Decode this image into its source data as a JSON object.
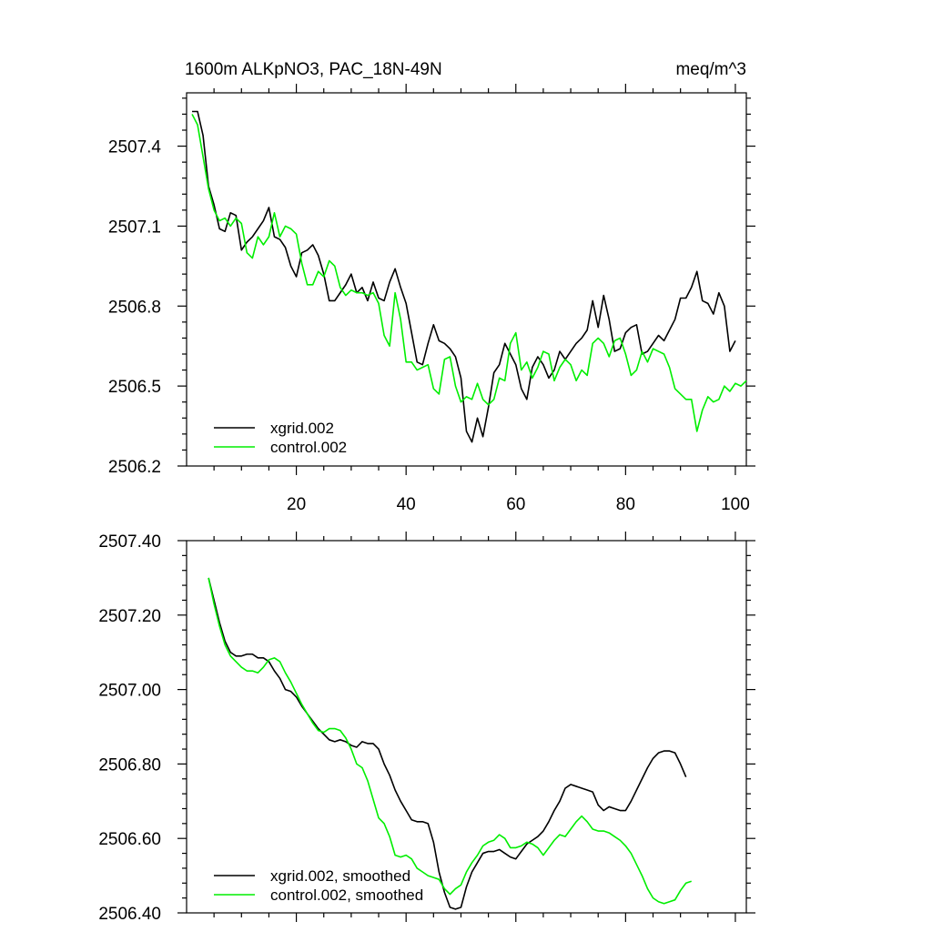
{
  "header": {
    "title_left": "1600m ALKpNO3, PAC_18N-49N",
    "title_right": "meq/m^3"
  },
  "colors": {
    "xgrid": "#000000",
    "control": "#00ee00"
  },
  "chart_data": [
    {
      "type": "line",
      "xlim": [
        0,
        102
      ],
      "ylim": [
        2506.2,
        2507.6
      ],
      "x_ticks": [
        20,
        40,
        60,
        80,
        100
      ],
      "y_ticks": [
        2506.2,
        2506.5,
        2506.8,
        2507.1,
        2507.4
      ],
      "y_tick_labels": [
        "2506.2",
        "2506.5",
        "2506.8",
        "2507.1",
        "2507.4"
      ],
      "legend_position": "bottom-left",
      "series": [
        {
          "name": "xgrid.002",
          "color": "#000000",
          "x_start": 1,
          "values": [
            2507.53,
            2507.53,
            2507.44,
            2507.25,
            2507.18,
            2507.09,
            2507.08,
            2507.15,
            2507.14,
            2507.01,
            2507.04,
            2507.06,
            2507.09,
            2507.12,
            2507.17,
            2507.06,
            2507.05,
            2507.02,
            2506.95,
            2506.91,
            2507.0,
            2507.01,
            2507.03,
            2506.99,
            2506.92,
            2506.82,
            2506.82,
            2506.85,
            2506.88,
            2506.92,
            2506.85,
            2506.87,
            2506.82,
            2506.89,
            2506.83,
            2506.82,
            2506.89,
            2506.94,
            2506.87,
            2506.81,
            2506.7,
            2506.59,
            2506.58,
            2506.66,
            2506.73,
            2506.67,
            2506.66,
            2506.64,
            2506.61,
            2506.53,
            2506.33,
            2506.29,
            2506.38,
            2506.31,
            2506.42,
            2506.55,
            2506.58,
            2506.66,
            2506.62,
            2506.58,
            2506.49,
            2506.45,
            2506.57,
            2506.61,
            2506.58,
            2506.53,
            2506.56,
            2506.63,
            2506.6,
            2506.63,
            2506.66,
            2506.68,
            2506.71,
            2506.82,
            2506.72,
            2506.84,
            2506.75,
            2506.63,
            2506.64,
            2506.7,
            2506.72,
            2506.73,
            2506.62,
            2506.63,
            2506.66,
            2506.69,
            2506.67,
            2506.71,
            2506.75,
            2506.83,
            2506.83,
            2506.87,
            2506.93,
            2506.82,
            2506.81,
            2506.77,
            2506.85,
            2506.8,
            2506.63,
            2506.67
          ]
        },
        {
          "name": "control.002",
          "color": "#00ee00",
          "x_start": 1,
          "values": [
            2507.52,
            2507.48,
            2507.36,
            2507.24,
            2507.16,
            2507.12,
            2507.13,
            2507.1,
            2507.13,
            2507.11,
            2507.0,
            2506.98,
            2507.06,
            2507.03,
            2507.06,
            2507.15,
            2507.06,
            2507.1,
            2507.09,
            2507.07,
            2506.96,
            2506.88,
            2506.88,
            2506.93,
            2506.91,
            2506.97,
            2506.95,
            2506.87,
            2506.84,
            2506.86,
            2506.85,
            2506.85,
            2506.84,
            2506.85,
            2506.81,
            2506.69,
            2506.65,
            2506.85,
            2506.75,
            2506.59,
            2506.59,
            2506.56,
            2506.57,
            2506.58,
            2506.49,
            2506.47,
            2506.6,
            2506.61,
            2506.5,
            2506.44,
            2506.46,
            2506.45,
            2506.51,
            2506.45,
            2506.43,
            2506.45,
            2506.53,
            2506.52,
            2506.66,
            2506.7,
            2506.56,
            2506.59,
            2506.53,
            2506.57,
            2506.63,
            2506.62,
            2506.52,
            2506.57,
            2506.6,
            2506.58,
            2506.52,
            2506.56,
            2506.54,
            2506.66,
            2506.68,
            2506.66,
            2506.61,
            2506.67,
            2506.68,
            2506.62,
            2506.54,
            2506.56,
            2506.63,
            2506.59,
            2506.64,
            2506.63,
            2506.62,
            2506.57,
            2506.49,
            2506.47,
            2506.45,
            2506.45,
            2506.33,
            2506.41,
            2506.46,
            2506.44,
            2506.45,
            2506.5,
            2506.48,
            2506.51,
            2506.5,
            2506.52
          ]
        }
      ]
    },
    {
      "type": "line",
      "xlim": [
        0,
        102
      ],
      "ylim": [
        2506.4,
        2507.4
      ],
      "x_ticks": [
        20,
        40,
        60,
        80,
        100
      ],
      "y_ticks": [
        2506.4,
        2506.6,
        2506.8,
        2507.0,
        2507.2,
        2507.4
      ],
      "y_tick_labels": [
        "2506.40",
        "2506.60",
        "2506.80",
        "2507.00",
        "2507.20",
        "2507.40"
      ],
      "legend_position": "bottom-left",
      "series": [
        {
          "name": "xgrid.002, smoothed",
          "color": "#000000",
          "x_start": 4,
          "values": [
            2507.3,
            2507.24,
            2507.18,
            2507.13,
            2507.1,
            2507.09,
            2507.09,
            2507.095,
            2507.095,
            2507.085,
            2507.085,
            2507.075,
            2507.05,
            2507.03,
            2507.0,
            2506.995,
            2506.98,
            2506.955,
            2506.935,
            2506.915,
            2506.895,
            2506.88,
            2506.865,
            2506.86,
            2506.865,
            2506.86,
            2506.85,
            2506.845,
            2506.86,
            2506.855,
            2506.855,
            2506.84,
            2506.8,
            2506.77,
            2506.73,
            2506.7,
            2506.675,
            2506.65,
            2506.645,
            2506.645,
            2506.64,
            2506.59,
            2506.51,
            2506.455,
            2506.415,
            2506.41,
            2506.415,
            2506.47,
            2506.51,
            2506.535,
            2506.56,
            2506.565,
            2506.565,
            2506.57,
            2506.56,
            2506.55,
            2506.545,
            2506.565,
            2506.585,
            2506.595,
            2506.605,
            2506.62,
            2506.645,
            2506.675,
            2506.7,
            2506.735,
            2506.745,
            2506.74,
            2506.735,
            2506.73,
            2506.725,
            2506.69,
            2506.675,
            2506.685,
            2506.68,
            2506.675,
            2506.675,
            2506.7,
            2506.73,
            2506.76,
            2506.79,
            2506.815,
            2506.83,
            2506.835,
            2506.835,
            2506.83,
            2506.8,
            2506.765
          ]
        },
        {
          "name": "control.002, smoothed",
          "color": "#00ee00",
          "x_start": 4,
          "values": [
            2507.3,
            2507.23,
            2507.17,
            2507.12,
            2507.09,
            2507.075,
            2507.06,
            2507.05,
            2507.05,
            2507.045,
            2507.06,
            2507.08,
            2507.085,
            2507.075,
            2507.045,
            2507.02,
            2506.99,
            2506.96,
            2506.935,
            2506.91,
            2506.89,
            2506.885,
            2506.895,
            2506.895,
            2506.89,
            2506.87,
            2506.84,
            2506.8,
            2506.79,
            2506.755,
            2506.705,
            2506.655,
            2506.64,
            2506.605,
            2506.555,
            2506.55,
            2506.555,
            2506.545,
            2506.52,
            2506.51,
            2506.5,
            2506.495,
            2506.49,
            2506.465,
            2506.45,
            2506.465,
            2506.475,
            2506.51,
            2506.535,
            2506.555,
            2506.58,
            2506.59,
            2506.595,
            2506.61,
            2506.6,
            2506.575,
            2506.575,
            2506.58,
            2506.59,
            2506.585,
            2506.575,
            2506.555,
            2506.575,
            2506.595,
            2506.61,
            2506.605,
            2506.625,
            2506.645,
            2506.66,
            2506.645,
            2506.625,
            2506.62,
            2506.62,
            2506.615,
            2506.605,
            2506.595,
            2506.58,
            2506.56,
            2506.53,
            2506.5,
            2506.465,
            2506.44,
            2506.43,
            2506.425,
            2506.43,
            2506.435,
            2506.46,
            2506.48,
            2506.485
          ]
        }
      ]
    }
  ]
}
